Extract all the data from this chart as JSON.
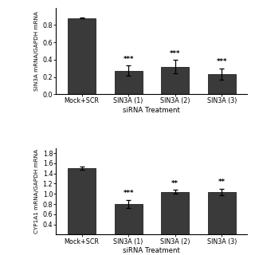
{
  "top_chart": {
    "categories": [
      "Mock+SCR",
      "SIN3A (1)",
      "SIN3A (2)",
      "SIN3A (3)"
    ],
    "values": [
      0.88,
      0.27,
      0.32,
      0.235
    ],
    "errors": [
      0.005,
      0.06,
      0.075,
      0.065
    ],
    "ylabel": "SIN3A mRNA/GAPDH mRNA",
    "xlabel": "siRNA Treatment",
    "ylim": [
      0,
      1.0
    ],
    "yticks": [
      0,
      0.2,
      0.4,
      0.6,
      0.8
    ],
    "significance": [
      "",
      "***",
      "***",
      "***"
    ],
    "bar_color": "#3a3a3a"
  },
  "bottom_chart": {
    "categories": [
      "Mock+SCR",
      "SIN3A (1)",
      "SIN3A (2)",
      "SIN3A (3)"
    ],
    "values": [
      1.5,
      0.8,
      1.04,
      1.04
    ],
    "errors": [
      0.03,
      0.085,
      0.04,
      0.065
    ],
    "ylabel": "CYP1A1 mRNA/GAPDH mRNA",
    "xlabel": "siRNA Treatment",
    "ylim": [
      0.2,
      1.9
    ],
    "yticks": [
      0.4,
      0.6,
      0.8,
      1.0,
      1.2,
      1.4,
      1.6,
      1.8
    ],
    "significance": [
      "",
      "***",
      "**",
      "**"
    ],
    "bar_color": "#3a3a3a"
  },
  "background_color": "#ffffff",
  "fig_width": 3.2,
  "fig_height": 3.2
}
